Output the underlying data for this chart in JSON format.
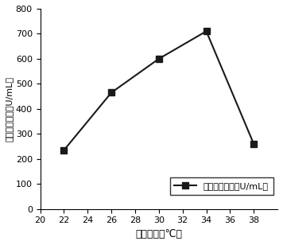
{
  "x": [
    22,
    26,
    30,
    34,
    38
  ],
  "y": [
    235,
    465,
    600,
    710,
    260
  ],
  "xlabel": "发酵温度（℃）",
  "ylabel": "橙皮苷糖苷活（U/mL）",
  "legend_label": "橙皮苷糖苷活（U/mL）",
  "xlim": [
    20,
    40
  ],
  "ylim": [
    0,
    800
  ],
  "xticks": [
    20,
    22,
    24,
    26,
    28,
    30,
    32,
    34,
    36,
    38
  ],
  "yticks": [
    0,
    100,
    200,
    300,
    400,
    500,
    600,
    700,
    800
  ],
  "line_color": "#1a1a1a",
  "marker": "s",
  "markersize": 6,
  "linewidth": 1.5,
  "background_color": "#ffffff",
  "xlabel_fontsize": 9,
  "ylabel_fontsize": 8,
  "tick_fontsize": 8,
  "legend_fontsize": 8
}
